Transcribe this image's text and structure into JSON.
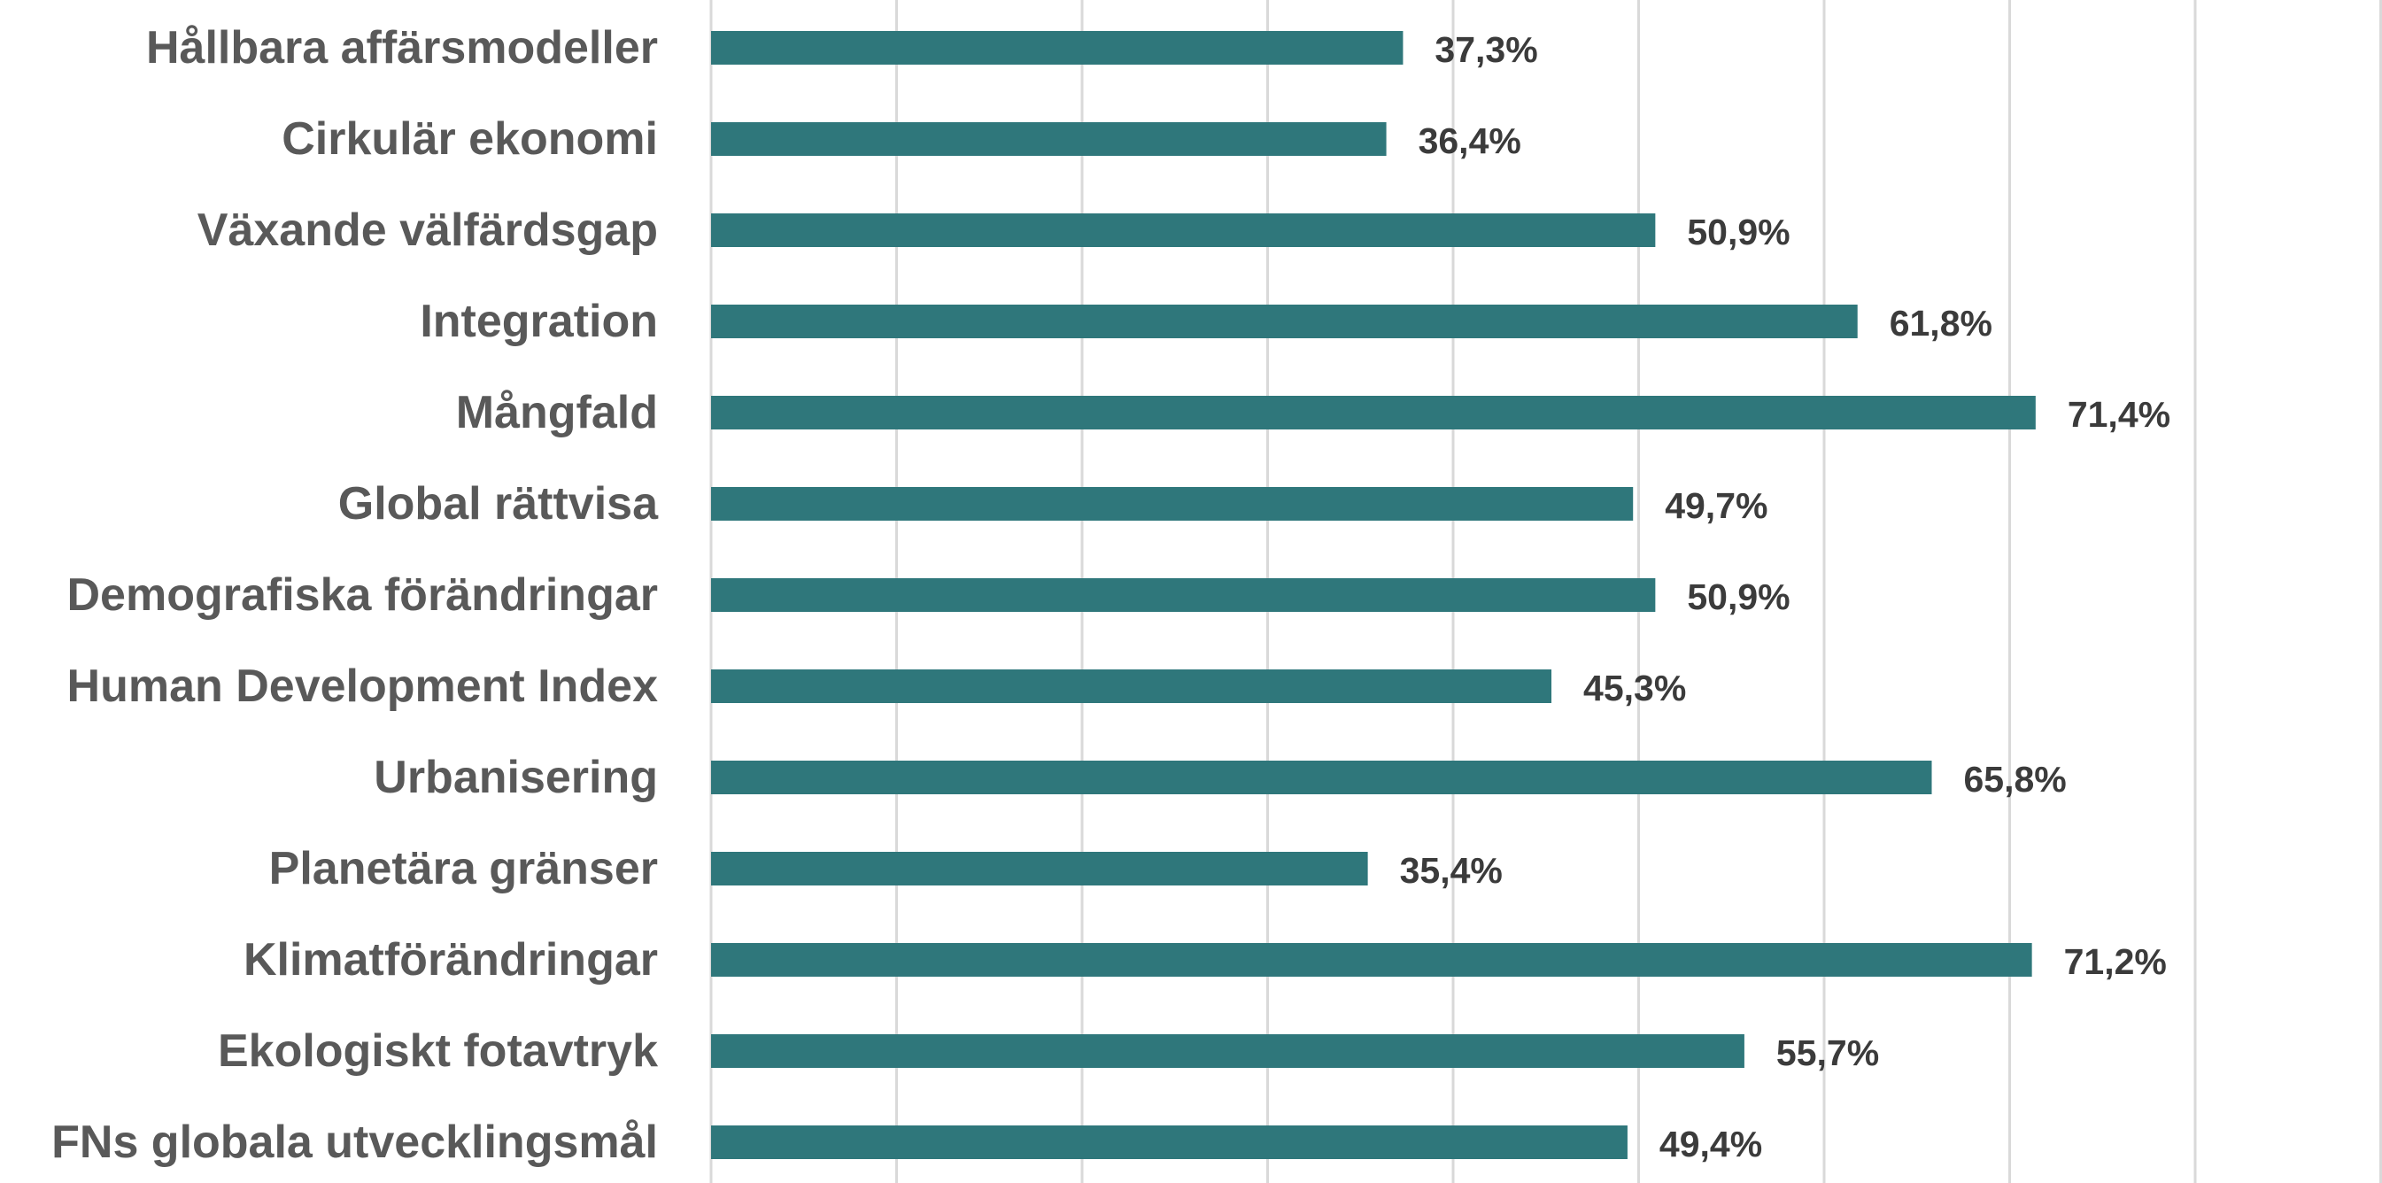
{
  "chart_data": {
    "type": "bar",
    "orientation": "horizontal",
    "categories": [
      "Hållbara affärsmodeller",
      "Cirkulär ekonomi",
      "Växande välfärdsgap",
      "Integration",
      "Mångfald",
      "Global rättvisa",
      "Demografiska förändringar",
      "Human Development Index",
      "Urbanisering",
      "Planetära gränser",
      "Klimatförändringar",
      "Ekologiskt fotavtryk",
      "FNs globala utvecklingsmål"
    ],
    "values": [
      37.3,
      36.4,
      50.9,
      61.8,
      71.4,
      49.7,
      50.9,
      45.3,
      65.8,
      35.4,
      71.2,
      55.7,
      49.4
    ],
    "value_labels": [
      "37,3%",
      "36,4%",
      "50,9%",
      "61,8%",
      "71,4%",
      "49,7%",
      "50,9%",
      "45,3%",
      "65,8%",
      "35,4%",
      "71,2%",
      "55,7%",
      "49,4%"
    ],
    "xlim": [
      0,
      90
    ],
    "x_grid_step": 10,
    "grid": true,
    "legend": "none",
    "bar_color": "#2f777b"
  }
}
